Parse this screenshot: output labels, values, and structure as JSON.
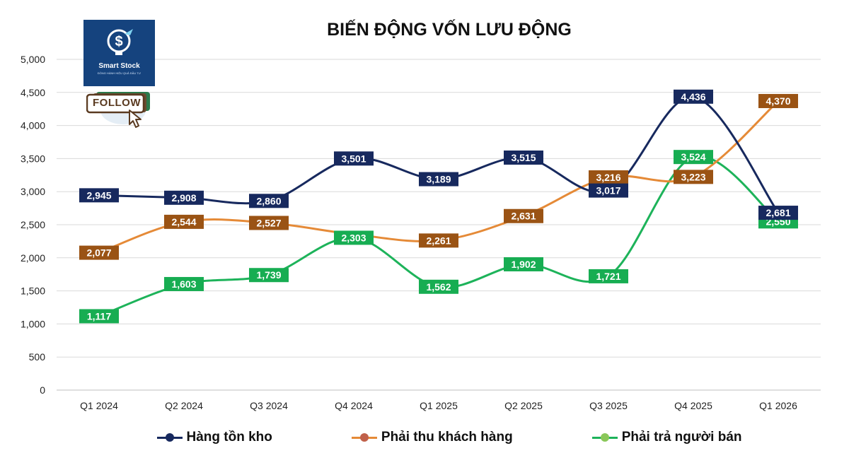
{
  "header": {
    "logo_name": "Smart Stock",
    "logo_tagline": "ĐỒNG HÀNH HIỆU QUẢ ĐẦU TƯ",
    "follow_label": "FOLLOW"
  },
  "chart_data": {
    "type": "line",
    "title": "BIẾN ĐỘNG VỐN LƯU ĐỘNG",
    "categories": [
      "Q1 2024",
      "Q2 2024",
      "Q3 2024",
      "Q4 2024",
      "Q1 2025",
      "Q2 2025",
      "Q3 2025",
      "Q4 2025",
      "Q1 2026"
    ],
    "ylim": [
      0,
      5000
    ],
    "yticks": [
      0,
      500,
      1000,
      1500,
      2000,
      2500,
      3000,
      3500,
      4000,
      4500,
      5000
    ],
    "ytick_labels": [
      "0",
      "500",
      "1,000",
      "1,500",
      "2,000",
      "2,500",
      "3,000",
      "3,500",
      "4,000",
      "4,500",
      "5,000"
    ],
    "grid": true,
    "legend_position": "bottom",
    "series": [
      {
        "name": "Hàng tồn kho",
        "color": "#17295e",
        "marker_color": "#17295e",
        "values": [
          2945,
          2908,
          2860,
          3501,
          3189,
          3515,
          3017,
          4436,
          2681
        ],
        "labels": [
          "2,945",
          "2,908",
          "2,860",
          "3,501",
          "3,189",
          "3,515",
          "3,017",
          "4,436",
          "2,681"
        ]
      },
      {
        "name": "Phải thu khách hàng",
        "color": "#e58a37",
        "marker_color": "#c0604a",
        "label_color": "#9a5314",
        "values": [
          2077,
          2544,
          2527,
          2355,
          2261,
          2631,
          3216,
          3223,
          4370
        ],
        "labels": [
          "2,077",
          "2,544",
          "2,527",
          "",
          "2,261",
          "2,631",
          "3,216",
          "3,223",
          "4,370"
        ]
      },
      {
        "name": "Phải trả người bán",
        "color": "#1db35a",
        "marker_color": "#8ac759",
        "label_color": "#17ad52",
        "values": [
          1117,
          1603,
          1739,
          2303,
          1562,
          1902,
          1721,
          3524,
          2550
        ],
        "labels": [
          "1,117",
          "1,603",
          "1,739",
          "2,303",
          "1,562",
          "1,902",
          "1,721",
          "3,524",
          "2,550"
        ]
      }
    ]
  }
}
